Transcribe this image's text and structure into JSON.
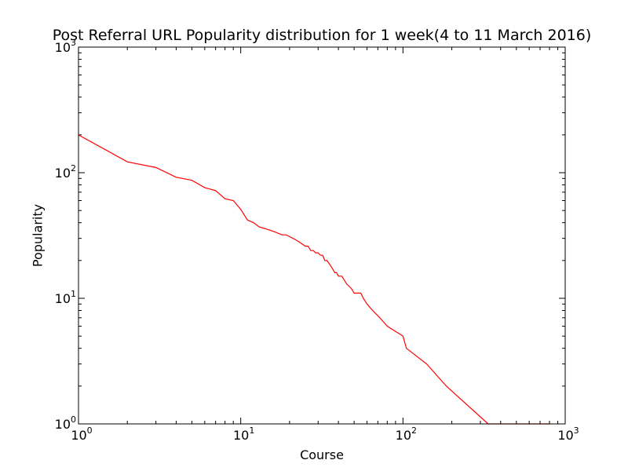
{
  "chart_data": {
    "type": "line",
    "title": "Post Referral URL Popularity distribution for 1 week(4 to 11 March 2016)",
    "xlabel": "Course",
    "ylabel": "Popularity",
    "xscale": "log",
    "yscale": "log",
    "xlim": [
      1,
      1000
    ],
    "ylim": [
      1,
      1000
    ],
    "grid": false,
    "line_color": "#ff0000",
    "x_ticks": [
      {
        "value": 1,
        "base": "10",
        "exp": "0"
      },
      {
        "value": 10,
        "base": "10",
        "exp": "1"
      },
      {
        "value": 100,
        "base": "10",
        "exp": "2"
      },
      {
        "value": 1000,
        "base": "10",
        "exp": "3"
      }
    ],
    "y_ticks": [
      {
        "value": 1,
        "base": "10",
        "exp": "0"
      },
      {
        "value": 10,
        "base": "10",
        "exp": "1"
      },
      {
        "value": 100,
        "base": "10",
        "exp": "2"
      },
      {
        "value": 1000,
        "base": "10",
        "exp": "3"
      }
    ],
    "series": [
      {
        "x": [
          1,
          2,
          3,
          4,
          5,
          6,
          7,
          8,
          9,
          10,
          11,
          12,
          13,
          14,
          15,
          16,
          17,
          18,
          19,
          20,
          21,
          22,
          23,
          24,
          25,
          26,
          27,
          28,
          29,
          30,
          31,
          32,
          33,
          34,
          35,
          36,
          37,
          38,
          39,
          40,
          42,
          45,
          48,
          50,
          55,
          57,
          60,
          65,
          72,
          80,
          100,
          105,
          140,
          185,
          335,
          800
        ],
        "y": [
          200,
          122,
          110,
          92,
          87,
          76,
          72,
          62,
          60,
          51,
          42,
          40,
          37,
          36,
          35,
          34,
          33,
          32,
          32,
          31,
          30,
          29,
          28,
          27,
          26,
          26,
          24,
          24,
          23,
          23,
          22,
          22,
          20,
          20,
          19,
          18,
          17,
          16,
          16,
          15,
          15,
          13,
          12,
          11,
          11,
          10,
          9,
          8,
          7,
          6,
          5,
          4,
          3,
          2,
          1,
          1
        ]
      }
    ]
  }
}
